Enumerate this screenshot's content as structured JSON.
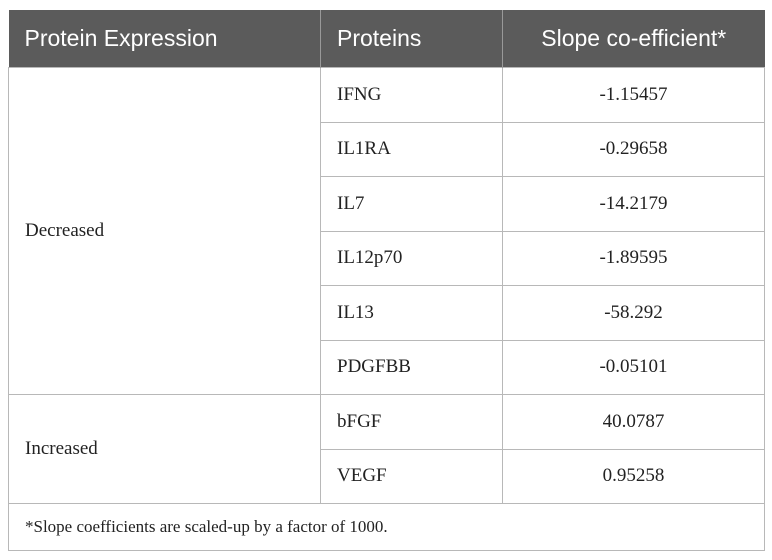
{
  "table": {
    "header": [
      "Protein Expression",
      "Proteins",
      "Slope co-efficient*"
    ],
    "groups": [
      {
        "label": "Decreased",
        "rows": [
          [
            "IFNG",
            "-1.15457"
          ],
          [
            "IL1RA",
            "-0.29658"
          ],
          [
            "IL7",
            "-14.2179"
          ],
          [
            "IL12p70",
            "-1.89595"
          ],
          [
            "IL13",
            "-58.292"
          ],
          [
            "PDGFBB",
            "-0.05101"
          ]
        ]
      },
      {
        "label": "Increased",
        "rows": [
          [
            "bFGF",
            "40.0787"
          ],
          [
            "VEGF",
            "0.95258"
          ]
        ]
      }
    ],
    "footnote": "*Slope coefficients are scaled-up by a factor of 1000."
  }
}
